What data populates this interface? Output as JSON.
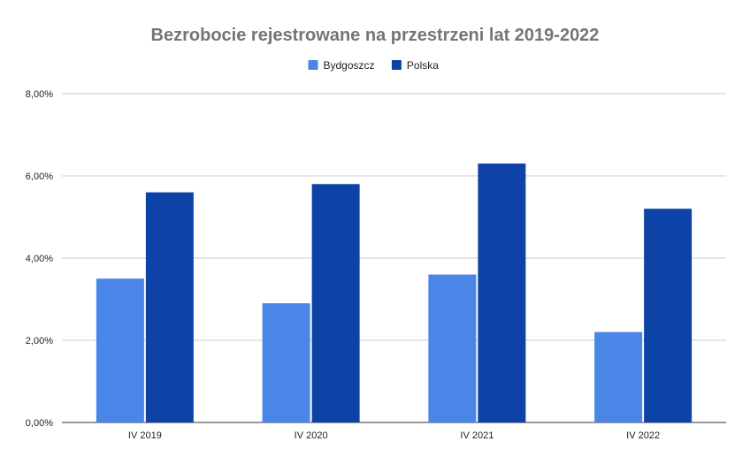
{
  "chart_data": {
    "type": "bar",
    "title": "Bezrobocie rejestrowane na przestrzeni lat 2019-2022",
    "xlabel": "",
    "ylabel": "",
    "categories": [
      "IV 2019",
      "IV 2020",
      "IV 2021",
      "IV 2022"
    ],
    "series": [
      {
        "name": "Bydgoszcz",
        "color": "#4a86e8",
        "values": [
          3.5,
          2.9,
          3.6,
          2.2
        ]
      },
      {
        "name": "Polska",
        "color": "#0d43a6",
        "values": [
          5.6,
          5.8,
          6.3,
          5.2
        ]
      }
    ],
    "ylim": [
      0,
      8
    ],
    "yticks": [
      0,
      2,
      4,
      6,
      8
    ],
    "ytick_labels": [
      "0,00%",
      "2,00%",
      "4,00%",
      "6,00%",
      "8,00%"
    ],
    "grid": true,
    "legend_position": "top-center"
  }
}
